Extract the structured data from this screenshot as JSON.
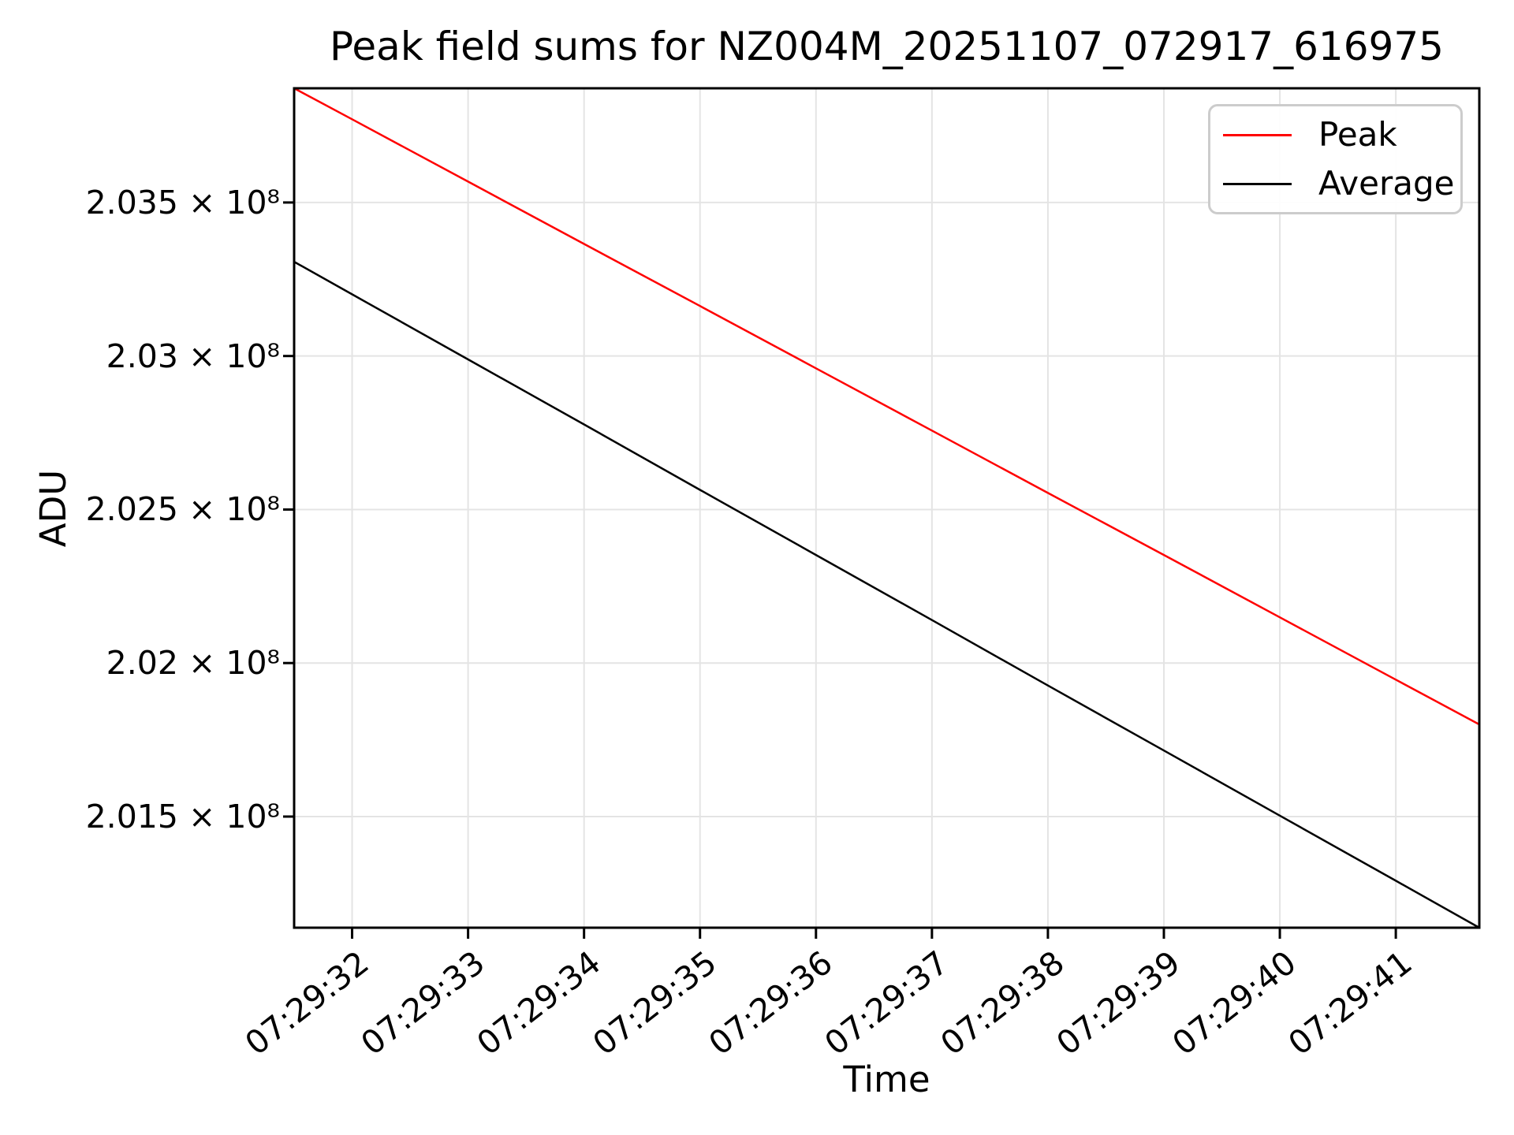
{
  "chart_data": {
    "type": "line",
    "title": "Peak field sums for NZ004M_20251107_072917_616975",
    "xlabel": "Time",
    "ylabel": "ADU",
    "grid": true,
    "legend_position": "upper right",
    "y_scale": "log",
    "y_unit": "ADU",
    "y_values_scale": "values given in units of 10^8",
    "xlim_seconds": [
      31.5,
      41.72
    ],
    "ylim_1e8": [
      2.01138,
      2.03872
    ],
    "x_ticks": [
      {
        "s": 32,
        "label": "07:29:32"
      },
      {
        "s": 33,
        "label": "07:29:33"
      },
      {
        "s": 34,
        "label": "07:29:34"
      },
      {
        "s": 35,
        "label": "07:29:35"
      },
      {
        "s": 36,
        "label": "07:29:36"
      },
      {
        "s": 37,
        "label": "07:29:37"
      },
      {
        "s": 38,
        "label": "07:29:38"
      },
      {
        "s": 39,
        "label": "07:29:39"
      },
      {
        "s": 40,
        "label": "07:29:40"
      },
      {
        "s": 41,
        "label": "07:29:41"
      }
    ],
    "y_ticks": [
      {
        "v": 2.035,
        "label": "2.035 × 10⁸"
      },
      {
        "v": 2.03,
        "label": "2.03 × 10⁸"
      },
      {
        "v": 2.025,
        "label": "2.025 × 10⁸"
      },
      {
        "v": 2.02,
        "label": "2.02 × 10⁸"
      },
      {
        "v": 2.015,
        "label": "2.015 × 10⁸"
      }
    ],
    "series": [
      {
        "name": "Peak",
        "color": "#ff0000",
        "x_seconds": [
          31.5,
          32,
          33,
          34,
          35,
          36,
          37,
          38,
          39,
          40,
          41,
          41.72
        ],
        "values_1e8": [
          2.03872,
          2.03771,
          2.03568,
          2.03365,
          2.03163,
          2.0296,
          2.02757,
          2.02554,
          2.02352,
          2.02149,
          2.01946,
          2.018
        ]
      },
      {
        "name": "Average",
        "color": "#000000",
        "x_seconds": [
          31.5,
          32,
          33,
          34,
          35,
          36,
          37,
          38,
          39,
          40,
          41,
          41.72
        ],
        "values_1e8": [
          2.03307,
          2.03201,
          2.02989,
          2.02777,
          2.02564,
          2.02352,
          2.0214,
          2.01927,
          2.01715,
          2.01503,
          2.01291,
          2.01138
        ]
      }
    ],
    "style": {
      "background": "#ffffff",
      "grid_color": "#e4e4e4",
      "axis_color": "#000000",
      "legend_border": "#cccccc"
    }
  }
}
